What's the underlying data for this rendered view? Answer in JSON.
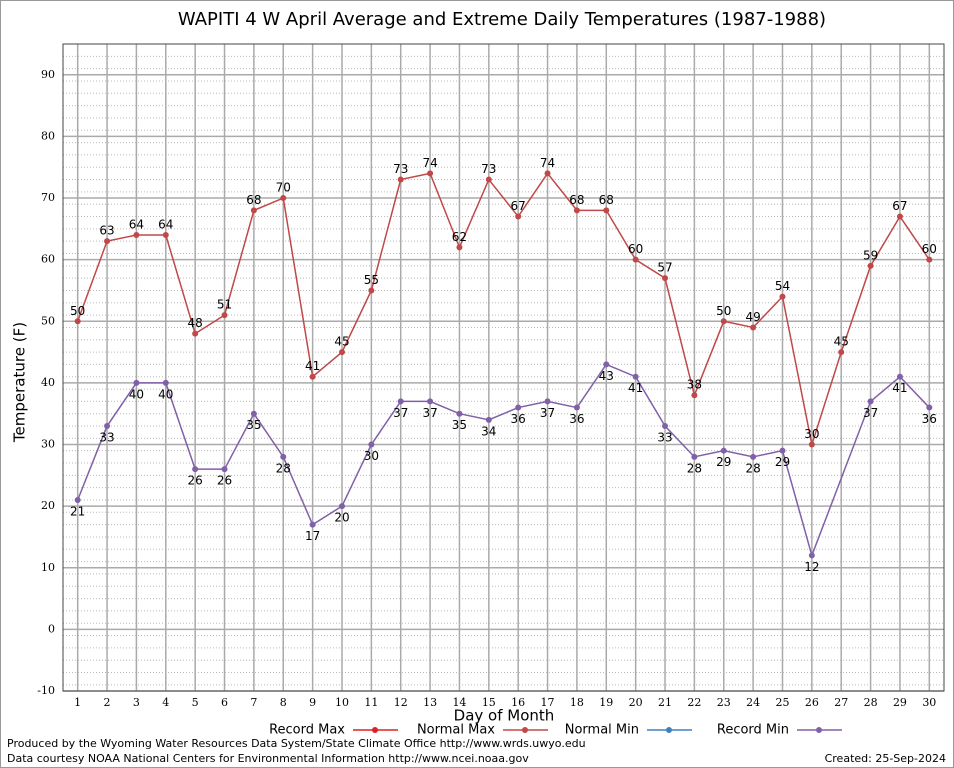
{
  "chart_data": {
    "type": "line",
    "title": "WAPITI 4 W April Average and Extreme Daily Temperatures (1987-1988)",
    "x_label": "Day of Month",
    "y_label": "Temperature (F)",
    "x": [
      1,
      2,
      3,
      4,
      5,
      6,
      7,
      8,
      9,
      10,
      11,
      12,
      13,
      14,
      15,
      16,
      17,
      18,
      19,
      20,
      21,
      22,
      23,
      24,
      25,
      26,
      27,
      28,
      29,
      30
    ],
    "xlim": [
      0.5,
      30.5
    ],
    "xticks": [
      1,
      2,
      3,
      4,
      5,
      6,
      7,
      8,
      9,
      10,
      11,
      12,
      13,
      14,
      15,
      16,
      17,
      18,
      19,
      20,
      21,
      22,
      23,
      24,
      25,
      26,
      27,
      28,
      29,
      30
    ],
    "ylim": [
      -10,
      95
    ],
    "yticks": [
      -10,
      0,
      10,
      20,
      30,
      40,
      50,
      60,
      70,
      80,
      90
    ],
    "grid": true,
    "series": [
      {
        "name": "Record Max",
        "color": "#e02020",
        "x": [],
        "values": []
      },
      {
        "name": "Normal Max",
        "color": "#c04848",
        "x": [
          1,
          2,
          3,
          4,
          5,
          6,
          7,
          8,
          9,
          10,
          11,
          12,
          13,
          14,
          15,
          16,
          17,
          18,
          19,
          20,
          21,
          22,
          23,
          24,
          25,
          26,
          27,
          28,
          29,
          30
        ],
        "values": [
          50,
          63,
          64,
          64,
          48,
          51,
          68,
          70,
          41,
          45,
          55,
          73,
          74,
          62,
          73,
          67,
          74,
          68,
          68,
          60,
          57,
          38,
          50,
          49,
          54,
          30,
          45,
          59,
          67,
          60
        ]
      },
      {
        "name": "Normal Min",
        "color": "#4080c0",
        "x": [],
        "values": []
      },
      {
        "name": "Record Min",
        "color": "#8060a8",
        "x": [
          1,
          2,
          3,
          4,
          5,
          6,
          7,
          8,
          9,
          10,
          11,
          12,
          13,
          14,
          15,
          16,
          17,
          18,
          19,
          20,
          21,
          22,
          23,
          24,
          25,
          26,
          28,
          29,
          30
        ],
        "values": [
          21,
          33,
          40,
          40,
          26,
          26,
          35,
          28,
          17,
          20,
          30,
          37,
          37,
          35,
          34,
          36,
          37,
          36,
          43,
          41,
          33,
          28,
          29,
          28,
          29,
          12,
          37,
          41,
          36
        ]
      }
    ],
    "footer_left": [
      "Produced by the Wyoming Water Resources Data System/State Climate Office http://www.wrds.uwyo.edu",
      "Data courtesy NOAA National Centers for Environmental Information http://www.ncei.noaa.gov"
    ],
    "footer_right": "Created:  25-Sep-2024"
  }
}
